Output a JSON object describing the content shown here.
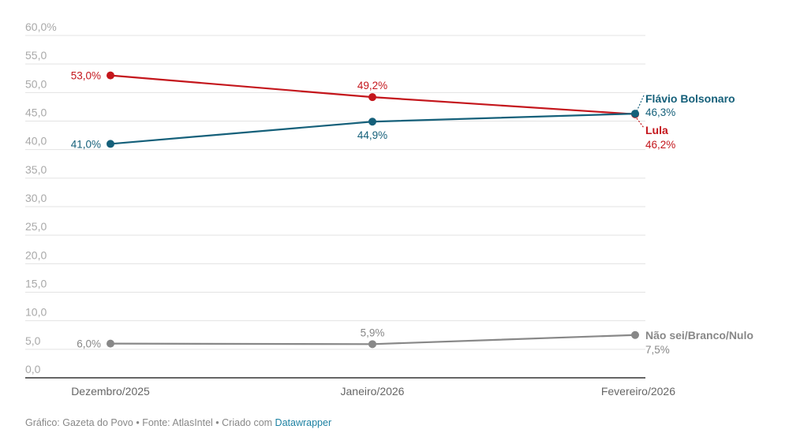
{
  "chart_data": {
    "type": "line",
    "title": "",
    "xlabel": "",
    "ylabel": "",
    "ylim": [
      0,
      60
    ],
    "grid": true,
    "y_ticks": [
      "0,0",
      "5,0",
      "10,0",
      "15,0",
      "20,0",
      "25,0",
      "30,0",
      "35,0",
      "40,0",
      "45,0",
      "50,0",
      "55,0",
      "60,0%"
    ],
    "y_tick_values": [
      0,
      5,
      10,
      15,
      20,
      25,
      30,
      35,
      40,
      45,
      50,
      55,
      60
    ],
    "categories": [
      "Dezembro/2025",
      "Janeiro/2026",
      "Fevereiro/2026"
    ],
    "series": [
      {
        "name": "Lula",
        "color": "#c4161c",
        "values": [
          53.0,
          49.2,
          46.2
        ],
        "labels": [
          "53,0%",
          "49,2%",
          "46,2%"
        ]
      },
      {
        "name": "Flávio Bolsonaro",
        "color": "#15607a",
        "values": [
          41.0,
          44.9,
          46.3
        ],
        "labels": [
          "41,0%",
          "44,9%",
          "46,3%"
        ]
      },
      {
        "name": "Não sei/Branco/Nulo",
        "color": "#888888",
        "values": [
          6.0,
          5.9,
          7.5
        ],
        "labels": [
          "6,0%",
          "5,9%",
          "7,5%"
        ]
      }
    ]
  },
  "footer": {
    "text": "Gráfico: Gazeta do Povo • Fonte: AtlasIntel • Criado com ",
    "link": "Datawrapper",
    "link_color": "#1d81a2"
  }
}
